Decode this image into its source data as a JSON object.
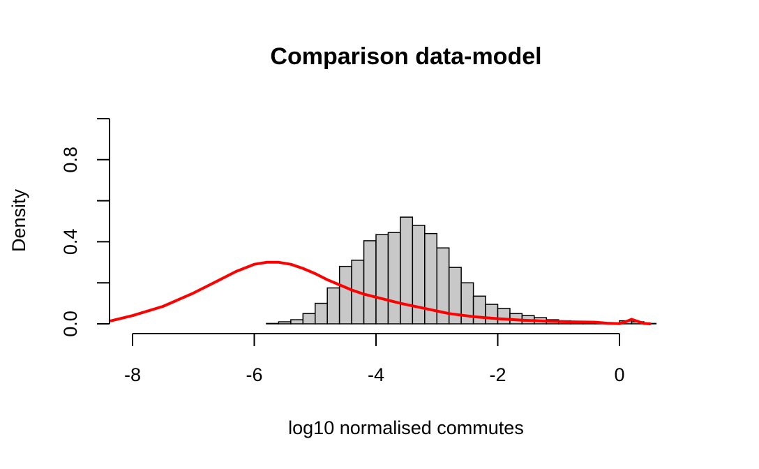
{
  "chart_data": {
    "type": "bar",
    "title": "Comparison data-model",
    "xlabel": "log10 normalised commutes",
    "ylabel": "Density",
    "xlim": [
      -8.3,
      0.6
    ],
    "ylim": [
      0,
      1.0
    ],
    "x_ticks": [
      -8,
      -6,
      -4,
      -2,
      0
    ],
    "x_tick_labels": [
      "-8",
      "-6",
      "-4",
      "-2",
      "0"
    ],
    "y_ticks": [
      0.0,
      0.2,
      0.4,
      0.6,
      0.8,
      1.0
    ],
    "y_tick_labels": [
      "0.0",
      "",
      "0.4",
      "",
      "0.8",
      ""
    ],
    "grid": false,
    "histogram": {
      "bin_width": 0.2,
      "bin_starts": [
        -6.2,
        -6.0,
        -5.8,
        -5.6,
        -5.4,
        -5.2,
        -5.0,
        -4.8,
        -4.6,
        -4.4,
        -4.2,
        -4.0,
        -3.8,
        -3.6,
        -3.4,
        -3.2,
        -3.0,
        -2.8,
        -2.6,
        -2.4,
        -2.2,
        -2.0,
        -1.8,
        -1.6,
        -1.4,
        -1.2,
        -1.0,
        -0.8,
        -0.6,
        -0.4,
        -0.2,
        0.0,
        0.2,
        0.4
      ],
      "values": [
        0.0,
        0.0,
        0.002,
        0.01,
        0.02,
        0.05,
        0.1,
        0.175,
        0.28,
        0.31,
        0.405,
        0.435,
        0.445,
        0.52,
        0.48,
        0.44,
        0.37,
        0.275,
        0.2,
        0.135,
        0.095,
        0.075,
        0.05,
        0.04,
        0.03,
        0.02,
        0.015,
        0.01,
        0.008,
        0.005,
        0.003,
        0.015,
        0.01,
        0.002
      ],
      "fill": "#c8c8c8",
      "stroke": "#000000"
    },
    "series": [
      {
        "type": "line",
        "color": "#ff0000",
        "x": [
          -8.35,
          -8.0,
          -7.5,
          -7.0,
          -6.6,
          -6.3,
          -6.0,
          -5.8,
          -5.6,
          -5.4,
          -5.2,
          -5.0,
          -4.8,
          -4.6,
          -4.4,
          -4.2,
          -4.0,
          -3.6,
          -3.2,
          -2.8,
          -2.4,
          -2.0,
          -1.6,
          -1.2,
          -0.8,
          -0.4,
          -0.2,
          0.0,
          0.1,
          0.2,
          0.3,
          0.4,
          0.5
        ],
        "y": [
          0.015,
          0.04,
          0.085,
          0.15,
          0.21,
          0.255,
          0.29,
          0.3,
          0.3,
          0.29,
          0.27,
          0.245,
          0.215,
          0.19,
          0.165,
          0.145,
          0.13,
          0.1,
          0.075,
          0.05,
          0.035,
          0.025,
          0.018,
          0.013,
          0.01,
          0.008,
          0.003,
          0.001,
          0.01,
          0.022,
          0.012,
          0.002,
          0.0
        ]
      }
    ]
  }
}
